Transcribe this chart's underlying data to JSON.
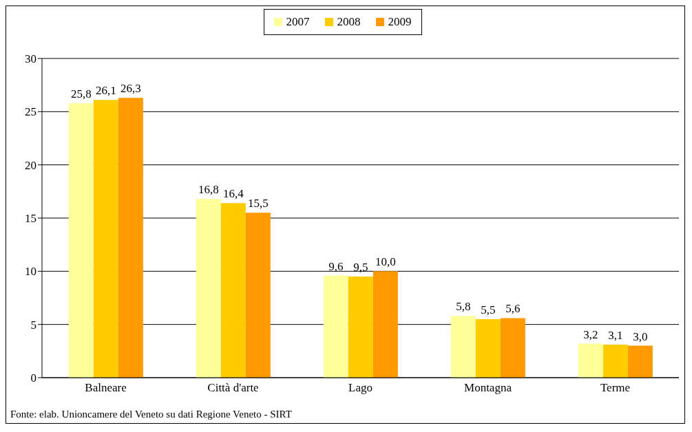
{
  "chart_data": {
    "type": "bar",
    "categories": [
      "Balneare",
      "Città d'arte",
      "Lago",
      "Montagna",
      "Terme"
    ],
    "series": [
      {
        "name": "2007",
        "color": "#ffff99",
        "values": [
          25.8,
          16.8,
          9.6,
          5.8,
          3.2
        ],
        "value_labels": [
          "25,8",
          "16,8",
          "9,6",
          "5,8",
          "3,2"
        ]
      },
      {
        "name": "2008",
        "color": "#ffcc00",
        "values": [
          26.1,
          16.4,
          9.5,
          5.5,
          3.1
        ],
        "value_labels": [
          "26,1",
          "16,4",
          "9,5",
          "5,5",
          "3,1"
        ]
      },
      {
        "name": "2009",
        "color": "#ff9900",
        "values": [
          26.3,
          15.5,
          10.0,
          5.6,
          3.0
        ],
        "value_labels": [
          "26,3",
          "15,5",
          "10,0",
          "5,6",
          "3,0"
        ]
      }
    ],
    "ylim": [
      0,
      30
    ],
    "yticks": [
      0,
      5,
      10,
      15,
      20,
      25,
      30
    ],
    "grid": "y",
    "legend": "top",
    "annotations": [
      "Fonte: elab. Unioncamere del Veneto su dati Regione Veneto - SIRT"
    ]
  }
}
